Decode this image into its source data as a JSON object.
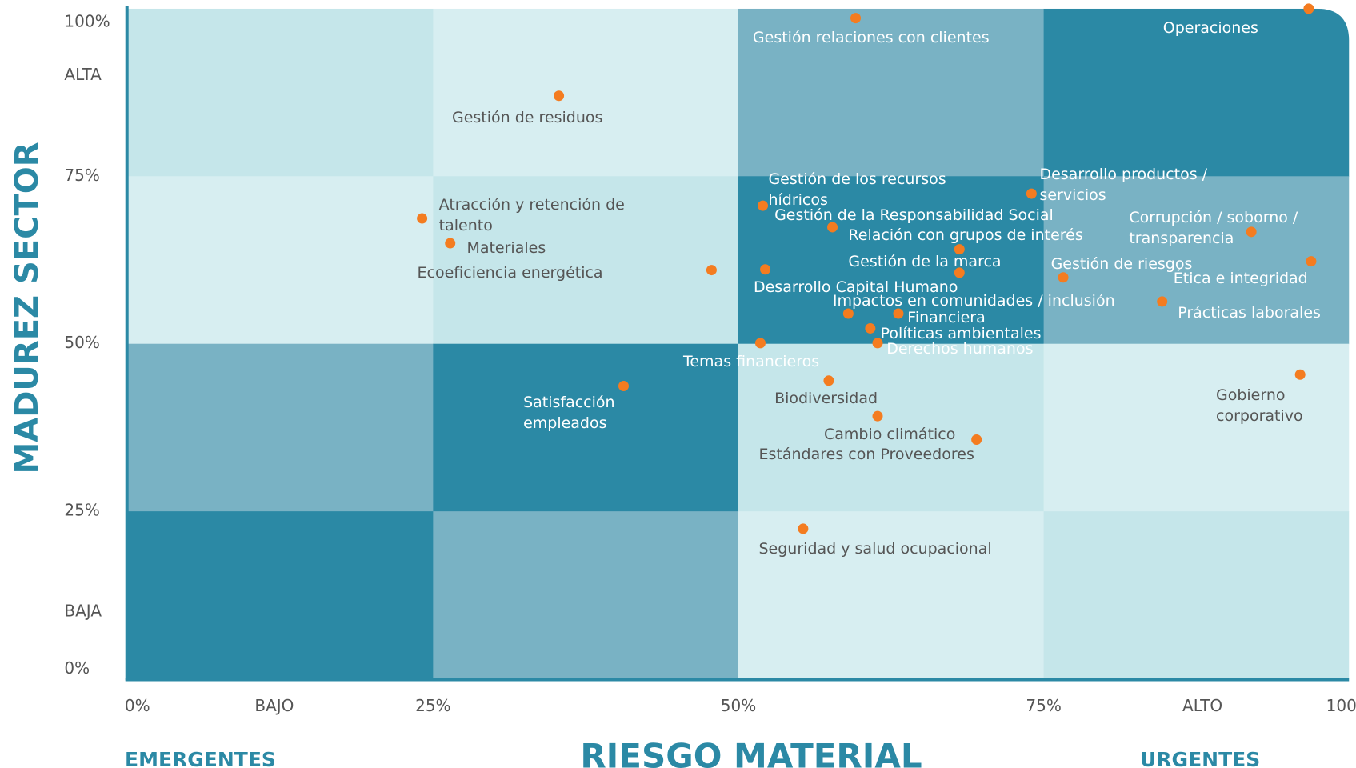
{
  "chart_data": {
    "type": "scatter",
    "xlabel": "RIESGO MATERIAL",
    "ylabel": "MADUREZ SECTOR",
    "annotations": [
      "EMERGENTES",
      "URGENTES"
    ],
    "xlim": [
      0,
      100
    ],
    "ylim": [
      0,
      100
    ],
    "xticks": [
      {
        "value": 0,
        "label": "0%"
      },
      {
        "value": 12,
        "label": "BAJO"
      },
      {
        "value": 25,
        "label": "25%"
      },
      {
        "value": 50,
        "label": "50%"
      },
      {
        "value": 75,
        "label": "75%"
      },
      {
        "value": 88,
        "label": "ALTO"
      },
      {
        "value": 100,
        "label": "100%"
      }
    ],
    "yticks": [
      {
        "value": 0,
        "label": "0%"
      },
      {
        "value": 10,
        "label": "BAJA"
      },
      {
        "value": 25,
        "label": "25%"
      },
      {
        "value": 50,
        "label": "50%"
      },
      {
        "value": 75,
        "label": "75%"
      },
      {
        "value": 90,
        "label": "ALTA"
      },
      {
        "value": 100,
        "label": "100%"
      }
    ],
    "color": "#f47c20",
    "zone_colors": [
      [
        "#c5e6ea",
        "#d7eef1",
        "#79b2c4",
        "#2b89a5"
      ],
      [
        "#d7eef1",
        "#c5e6ea",
        "#2b89a5",
        "#79b2c4"
      ],
      [
        "#79b2c4",
        "#2b89a5",
        "#c5e6ea",
        "#d7eef1"
      ],
      [
        "#2b89a5",
        "#79b2c4",
        "#d7eef1",
        "#c5e6ea"
      ]
    ],
    "labels": [
      "Gestión relaciones con clientes",
      "Operaciones",
      "Gestión de residuos",
      "Desarrollo productos / servicios",
      "Gestión de los recursos hídricos",
      "Atracción y retención de talento",
      "Gestión de la Responsabilidad Social",
      "Corrupción / soborno / transparencia",
      "Materiales",
      "Relación con grupos de interés",
      "Gestión de la marca",
      "Ética e integridad",
      "Ecoeficiencia energética",
      "Desarrollo Capital Humano",
      "Gestión de riesgos",
      "Impactos en comunidades / inclusión",
      "Financiera",
      "Prácticas laborales",
      "Políticas ambientales",
      "Derechos humanos",
      "Temas financieros",
      "Gobierno corporativo",
      "Satisfacción empleados",
      "Biodiversidad",
      "Cambio climático",
      "Estándares con Proveedores",
      "Seguridad y salud ocupacional"
    ],
    "x": [
      59.6,
      96.7,
      35.3,
      74.0,
      52.0,
      24.1,
      57.7,
      92.0,
      26.4,
      68.1,
      68.1,
      96.9,
      47.8,
      52.2,
      76.6,
      59.0,
      63.1,
      84.7,
      60.8,
      61.4,
      51.8,
      96.0,
      40.6,
      57.4,
      61.4,
      69.5,
      55.3
    ],
    "values": [
      98.6,
      100,
      87.0,
      72.4,
      70.6,
      68.7,
      67.4,
      66.7,
      65.0,
      64.1,
      60.6,
      62.3,
      61.0,
      61.1,
      59.9,
      54.5,
      54.5,
      56.3,
      52.3,
      50.1,
      50.1,
      45.4,
      43.7,
      44.5,
      39.2,
      35.7,
      22.4
    ]
  }
}
